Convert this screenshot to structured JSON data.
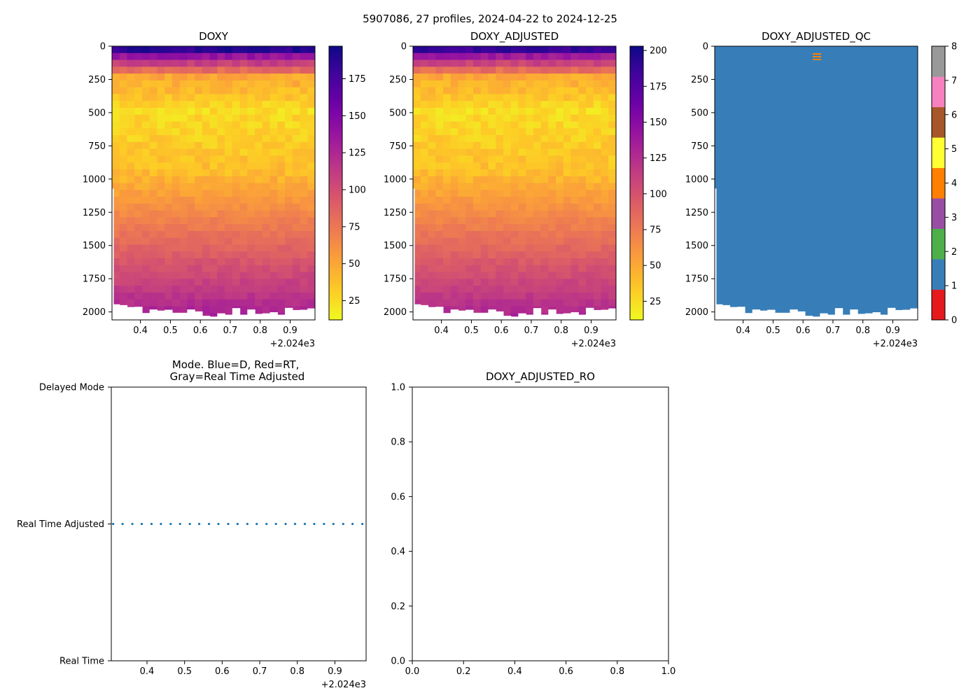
{
  "figure": {
    "suptitle": "5907086, 27 profiles, 2024-04-22 to 2024-12-25"
  },
  "colors": {
    "plasma": [
      "#0d0887",
      "#46039f",
      "#7201a8",
      "#9c179e",
      "#bd3786",
      "#d8576b",
      "#ed7953",
      "#fb9f3a",
      "#fdca26",
      "#f0f921"
    ],
    "qc": [
      "#e41a1c",
      "#377eb8",
      "#4daf4a",
      "#984ea3",
      "#ff7f00",
      "#ffff33",
      "#a65628",
      "#f781bf",
      "#999999"
    ],
    "mode_dot": "#1f77b4"
  },
  "chart_data": [
    {
      "type": "heatmap",
      "title": "DOXY",
      "xlim": [
        2024.305,
        2024.983
      ],
      "x_ticks": [
        "0.4",
        "0.5",
        "0.6",
        "0.7",
        "0.8",
        "0.9"
      ],
      "x_offset": "+2.024e3",
      "ylim": [
        2060,
        0
      ],
      "y_ticks": [
        "0",
        "250",
        "500",
        "750",
        "1000",
        "1250",
        "1500",
        "1750",
        "2000"
      ],
      "colorbar": {
        "range": [
          12,
          197
        ],
        "ticks": [
          "25",
          "50",
          "75",
          "100",
          "125",
          "150",
          "175"
        ]
      }
    },
    {
      "type": "heatmap",
      "title": "DOXY_ADJUSTED",
      "xlim": [
        2024.305,
        2024.983
      ],
      "x_ticks": [
        "0.4",
        "0.5",
        "0.6",
        "0.7",
        "0.8",
        "0.9"
      ],
      "x_offset": "+2.024e3",
      "ylim": [
        2060,
        0
      ],
      "y_ticks": [
        "0",
        "250",
        "500",
        "750",
        "1000",
        "1250",
        "1500",
        "1750",
        "2000"
      ],
      "colorbar": {
        "range": [
          12,
          203
        ],
        "ticks": [
          "25",
          "50",
          "75",
          "100",
          "125",
          "150",
          "175",
          "200"
        ]
      }
    },
    {
      "type": "heatmap",
      "title": "DOXY_ADJUSTED_QC",
      "xlim": [
        2024.305,
        2024.983
      ],
      "x_ticks": [
        "0.4",
        "0.5",
        "0.6",
        "0.7",
        "0.8",
        "0.9"
      ],
      "x_offset": "+2.024e3",
      "ylim": [
        2060,
        0
      ],
      "y_ticks": [
        "0",
        "250",
        "500",
        "750",
        "1000",
        "1250",
        "1500",
        "1750",
        "2000"
      ],
      "values_note": "QC flag 1 for all data; small flag-4 marks near 80-100 dbar at x≈2024.64",
      "colorbar": {
        "range": [
          0,
          8
        ],
        "ticks": [
          "0",
          "1",
          "2",
          "3",
          "4",
          "5",
          "6",
          "7",
          "8"
        ]
      }
    },
    {
      "type": "scatter",
      "title": "Mode. Blue=D, Red=RT,\nGray=Real Time Adjusted",
      "xlim": [
        2024.305,
        2024.983
      ],
      "x_ticks": [
        "0.4",
        "0.5",
        "0.6",
        "0.7",
        "0.8",
        "0.9"
      ],
      "x_offset": "+2.024e3",
      "y_categories": [
        "Real Time",
        "Real Time Adjusted",
        "Delayed Mode"
      ],
      "series": [
        {
          "name": "Real Time Adjusted",
          "y": 1,
          "x": [
            2024.31,
            2024.335,
            2024.361,
            2024.386,
            2024.412,
            2024.437,
            2024.463,
            2024.488,
            2024.514,
            2024.539,
            2024.565,
            2024.59,
            2024.616,
            2024.641,
            2024.667,
            2024.692,
            2024.718,
            2024.743,
            2024.769,
            2024.794,
            2024.82,
            2024.845,
            2024.871,
            2024.896,
            2024.922,
            2024.947,
            2024.973
          ]
        }
      ]
    },
    {
      "type": "scatter",
      "title": "DOXY_ADJUSTED_RO",
      "xlim": [
        0,
        1
      ],
      "ylim": [
        0,
        1
      ],
      "x_ticks": [
        "0.0",
        "0.2",
        "0.4",
        "0.6",
        "0.8",
        "1.0"
      ],
      "y_ticks": [
        "0.0",
        "0.2",
        "0.4",
        "0.6",
        "0.8",
        "1.0"
      ],
      "series": []
    }
  ]
}
